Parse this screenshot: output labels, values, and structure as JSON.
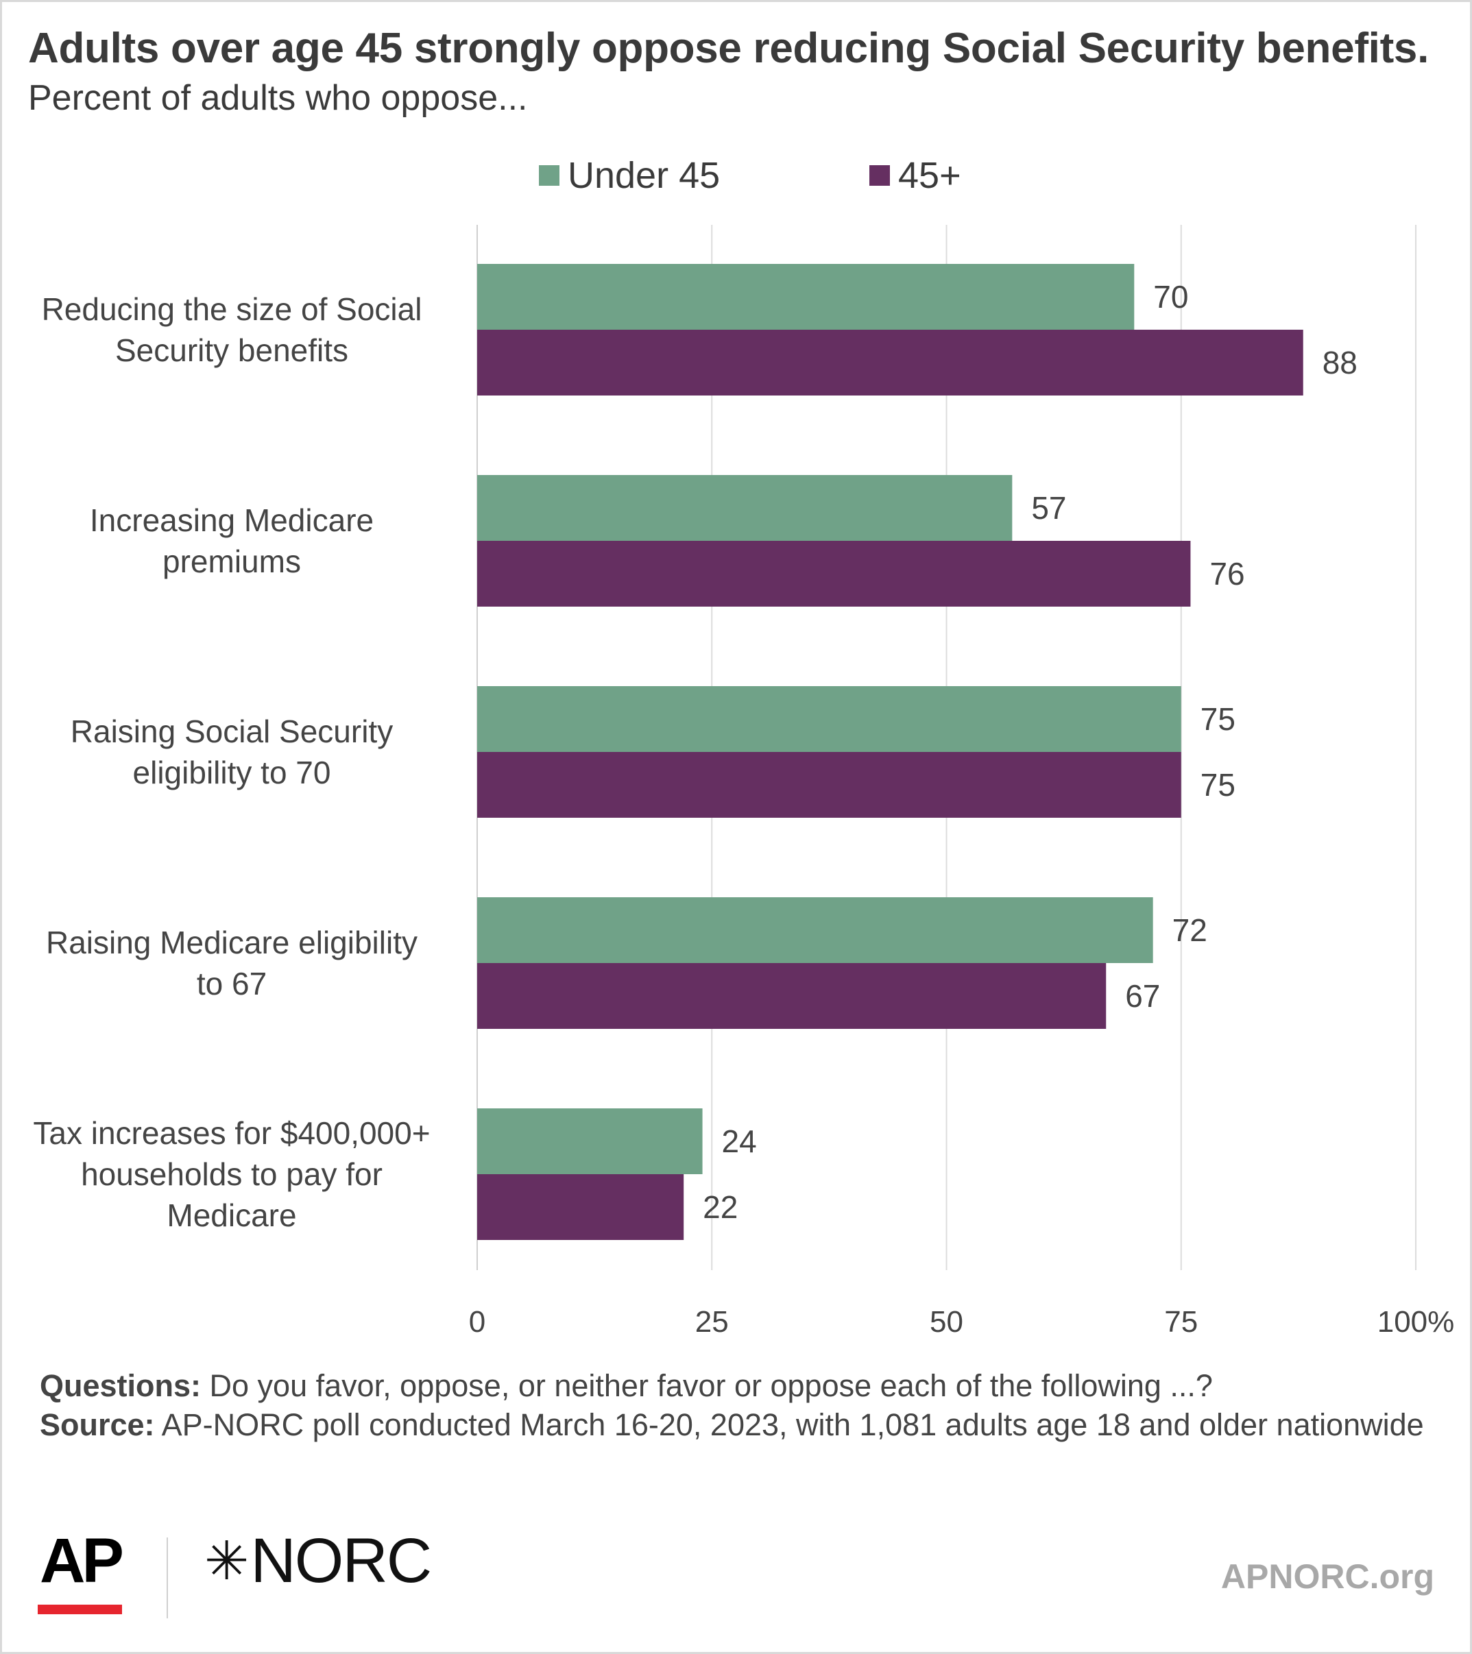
{
  "header": {
    "title": "Adults over age 45 strongly oppose reducing Social Security benefits.",
    "subtitle": "Percent of adults who oppose..."
  },
  "chart_data": {
    "type": "bar",
    "orientation": "horizontal",
    "categories": [
      [
        "Reducing the size of Social",
        "Security benefits"
      ],
      [
        "Increasing Medicare",
        "premiums"
      ],
      [
        "Raising Social Security",
        "eligibility to 70"
      ],
      [
        "Raising Medicare eligibility",
        "to 67"
      ],
      [
        "Tax increases for $400,000+",
        "households to pay for",
        "Medicare"
      ]
    ],
    "series": [
      {
        "name": "Under 45",
        "color": "#70a288",
        "values": [
          70,
          57,
          75,
          72,
          24
        ]
      },
      {
        "name": "45+",
        "color": "#652f61",
        "values": [
          88,
          76,
          75,
          67,
          22
        ]
      }
    ],
    "xlim": [
      0,
      100
    ],
    "xticks": [
      "0",
      "25",
      "50",
      "75",
      "100%"
    ],
    "xtick_values": [
      0,
      25,
      50,
      75,
      100
    ],
    "grid": true,
    "legend_position": "top"
  },
  "notes": {
    "questions_label": "Questions:",
    "questions_text": " Do you favor, oppose, or neither favor or oppose each of the following ...?",
    "source_label": "Source:",
    "source_text": " AP-NORC poll conducted March 16-20, 2023, with 1,081 adults age 18 and older nationwide"
  },
  "footer": {
    "ap_logo": "AP",
    "norc_logo": "NORC",
    "norc_star": "✳",
    "site": "APNORC.org"
  }
}
